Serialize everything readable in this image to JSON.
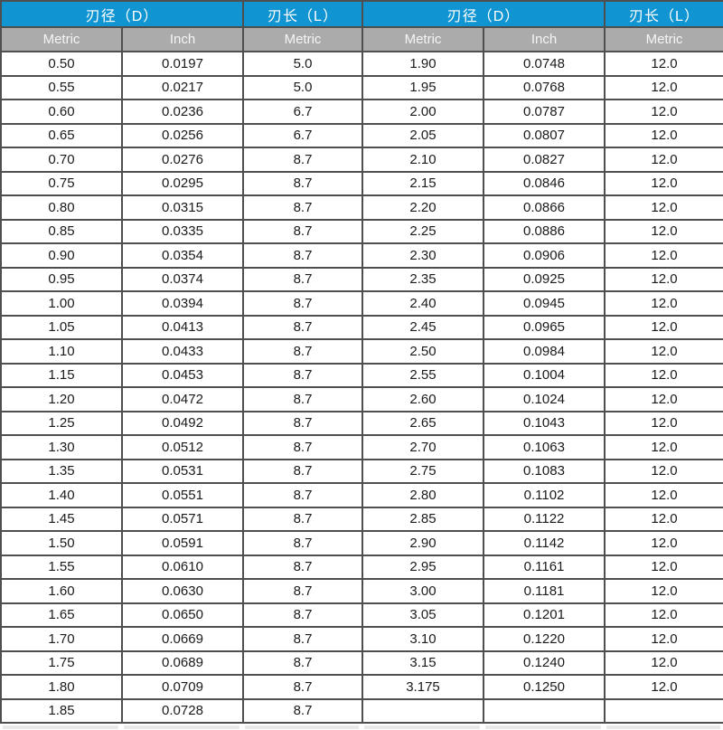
{
  "chart_data": {
    "type": "table",
    "title": "",
    "column_groups": [
      {
        "label": "刃径（D）",
        "span": 2
      },
      {
        "label": "刃长（L）",
        "span": 1
      },
      {
        "label": "刃径（D）",
        "span": 2
      },
      {
        "label": "刃长（L）",
        "span": 1
      }
    ],
    "columns": [
      "Metric",
      "Inch",
      "Metric",
      "Metric",
      "Inch",
      "Metric"
    ],
    "rows": [
      [
        "0.50",
        "0.0197",
        "5.0",
        "1.90",
        "0.0748",
        "12.0"
      ],
      [
        "0.55",
        "0.0217",
        "5.0",
        "1.95",
        "0.0768",
        "12.0"
      ],
      [
        "0.60",
        "0.0236",
        "6.7",
        "2.00",
        "0.0787",
        "12.0"
      ],
      [
        "0.65",
        "0.0256",
        "6.7",
        "2.05",
        "0.0807",
        "12.0"
      ],
      [
        "0.70",
        "0.0276",
        "8.7",
        "2.10",
        "0.0827",
        "12.0"
      ],
      [
        "0.75",
        "0.0295",
        "8.7",
        "2.15",
        "0.0846",
        "12.0"
      ],
      [
        "0.80",
        "0.0315",
        "8.7",
        "2.20",
        "0.0866",
        "12.0"
      ],
      [
        "0.85",
        "0.0335",
        "8.7",
        "2.25",
        "0.0886",
        "12.0"
      ],
      [
        "0.90",
        "0.0354",
        "8.7",
        "2.30",
        "0.0906",
        "12.0"
      ],
      [
        "0.95",
        "0.0374",
        "8.7",
        "2.35",
        "0.0925",
        "12.0"
      ],
      [
        "1.00",
        "0.0394",
        "8.7",
        "2.40",
        "0.0945",
        "12.0"
      ],
      [
        "1.05",
        "0.0413",
        "8.7",
        "2.45",
        "0.0965",
        "12.0"
      ],
      [
        "1.10",
        "0.0433",
        "8.7",
        "2.50",
        "0.0984",
        "12.0"
      ],
      [
        "1.15",
        "0.0453",
        "8.7",
        "2.55",
        "0.1004",
        "12.0"
      ],
      [
        "1.20",
        "0.0472",
        "8.7",
        "2.60",
        "0.1024",
        "12.0"
      ],
      [
        "1.25",
        "0.0492",
        "8.7",
        "2.65",
        "0.1043",
        "12.0"
      ],
      [
        "1.30",
        "0.0512",
        "8.7",
        "2.70",
        "0.1063",
        "12.0"
      ],
      [
        "1.35",
        "0.0531",
        "8.7",
        "2.75",
        "0.1083",
        "12.0"
      ],
      [
        "1.40",
        "0.0551",
        "8.7",
        "2.80",
        "0.1102",
        "12.0"
      ],
      [
        "1.45",
        "0.0571",
        "8.7",
        "2.85",
        "0.1122",
        "12.0"
      ],
      [
        "1.50",
        "0.0591",
        "8.7",
        "2.90",
        "0.1142",
        "12.0"
      ],
      [
        "1.55",
        "0.0610",
        "8.7",
        "2.95",
        "0.1161",
        "12.0"
      ],
      [
        "1.60",
        "0.0630",
        "8.7",
        "3.00",
        "0.1181",
        "12.0"
      ],
      [
        "1.65",
        "0.0650",
        "8.7",
        "3.05",
        "0.1201",
        "12.0"
      ],
      [
        "1.70",
        "0.0669",
        "8.7",
        "3.10",
        "0.1220",
        "12.0"
      ],
      [
        "1.75",
        "0.0689",
        "8.7",
        "3.15",
        "0.1240",
        "12.0"
      ],
      [
        "1.80",
        "0.0709",
        "8.7",
        "3.175",
        "0.1250",
        "12.0"
      ],
      [
        "1.85",
        "0.0728",
        "8.7",
        "",
        "",
        ""
      ]
    ]
  },
  "colors": {
    "group_header_blue": "#1095d2",
    "subheader_gray": "#ababab",
    "border_dark_gray": "#4f4f4f",
    "cell_text": "#1a1a1a",
    "header_text": "#ffffff"
  }
}
